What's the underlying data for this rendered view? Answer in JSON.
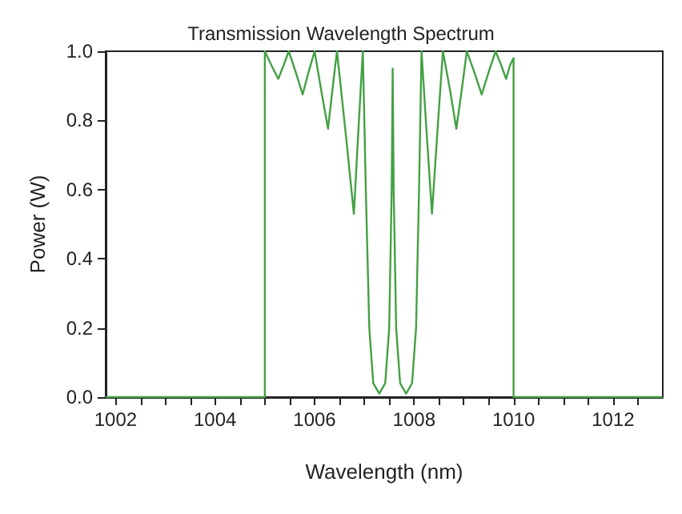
{
  "chart_data": {
    "type": "line",
    "title": "Transmission Wavelength Spectrum",
    "xlabel": "Wavelength (nm)",
    "ylabel": "Power (W)",
    "x": [
      1001.8,
      1005,
      1005,
      1005.13,
      1005.27,
      1005.38,
      1005.48,
      1005.62,
      1005.76,
      1005.88,
      1006.0,
      1006.13,
      1006.27,
      1006.36,
      1006.45,
      1006.62,
      1006.79,
      1006.88,
      1006.97,
      1007.03,
      1007.1,
      1007.18,
      1007.3,
      1007.42,
      1007.5,
      1007.55,
      1007.57,
      1007.59,
      1007.64,
      1007.72,
      1007.84,
      1007.96,
      1008.04,
      1008.1,
      1008.15,
      1008.25,
      1008.36,
      1008.47,
      1008.58,
      1008.72,
      1008.85,
      1008.96,
      1009.06,
      1009.21,
      1009.36,
      1009.5,
      1009.64,
      1009.75,
      1009.85,
      1009.93,
      1010,
      1010,
      1013
    ],
    "series": [
      {
        "color": "#44a044",
        "values": [
          0,
          0,
          1.0,
          0.96,
          0.92,
          0.96,
          1.0,
          0.94,
          0.875,
          0.94,
          1.0,
          0.89,
          0.776,
          0.89,
          1.0,
          0.77,
          0.53,
          0.77,
          1.0,
          0.6,
          0.2,
          0.04,
          0.01,
          0.04,
          0.2,
          0.6,
          0.95,
          0.6,
          0.2,
          0.04,
          0.01,
          0.04,
          0.2,
          0.6,
          1.0,
          0.77,
          0.53,
          0.77,
          1.0,
          0.89,
          0.776,
          0.89,
          1.0,
          0.94,
          0.875,
          0.94,
          1.0,
          0.96,
          0.92,
          0.96,
          0.98,
          0,
          0
        ]
      }
    ],
    "xlim": [
      1001.8,
      1013
    ],
    "xticks": [
      1002,
      {
        "value": 1002.5,
        "label": null
      },
      1004,
      {
        "value": 1003,
        "label": null
      },
      {
        "value": 1003.5,
        "label": null
      },
      {
        "value": 1004.5,
        "label": null
      },
      1006,
      {
        "value": 1005,
        "label": null
      },
      {
        "value": 1005.5,
        "label": null
      },
      {
        "value": 1006.5,
        "label": null
      },
      1008,
      {
        "value": 1007,
        "label": null
      },
      {
        "value": 1007.5,
        "label": null
      },
      {
        "value": 1008.5,
        "label": null
      },
      1010,
      {
        "value": 1009,
        "label": null
      },
      {
        "value": 1009.5,
        "label": null
      },
      {
        "value": 1010.5,
        "label": null
      },
      1012,
      {
        "value": 1011,
        "label": null
      },
      {
        "value": 1011.5,
        "label": null
      },
      {
        "value": 1012.5,
        "label": null
      }
    ],
    "ylim": [
      0,
      1
    ],
    "yticks": [
      {
        "value": 0,
        "label": "0.0"
      },
      {
        "value": 0.2,
        "label": "0.2"
      },
      {
        "value": 0.4,
        "label": "0.4"
      },
      {
        "value": 0.6,
        "label": "0.6"
      },
      {
        "value": 0.8,
        "label": "0.8"
      },
      {
        "value": 1,
        "label": "1.0"
      }
    ],
    "grid": false,
    "marker": "none",
    "line_style": "solid"
  }
}
